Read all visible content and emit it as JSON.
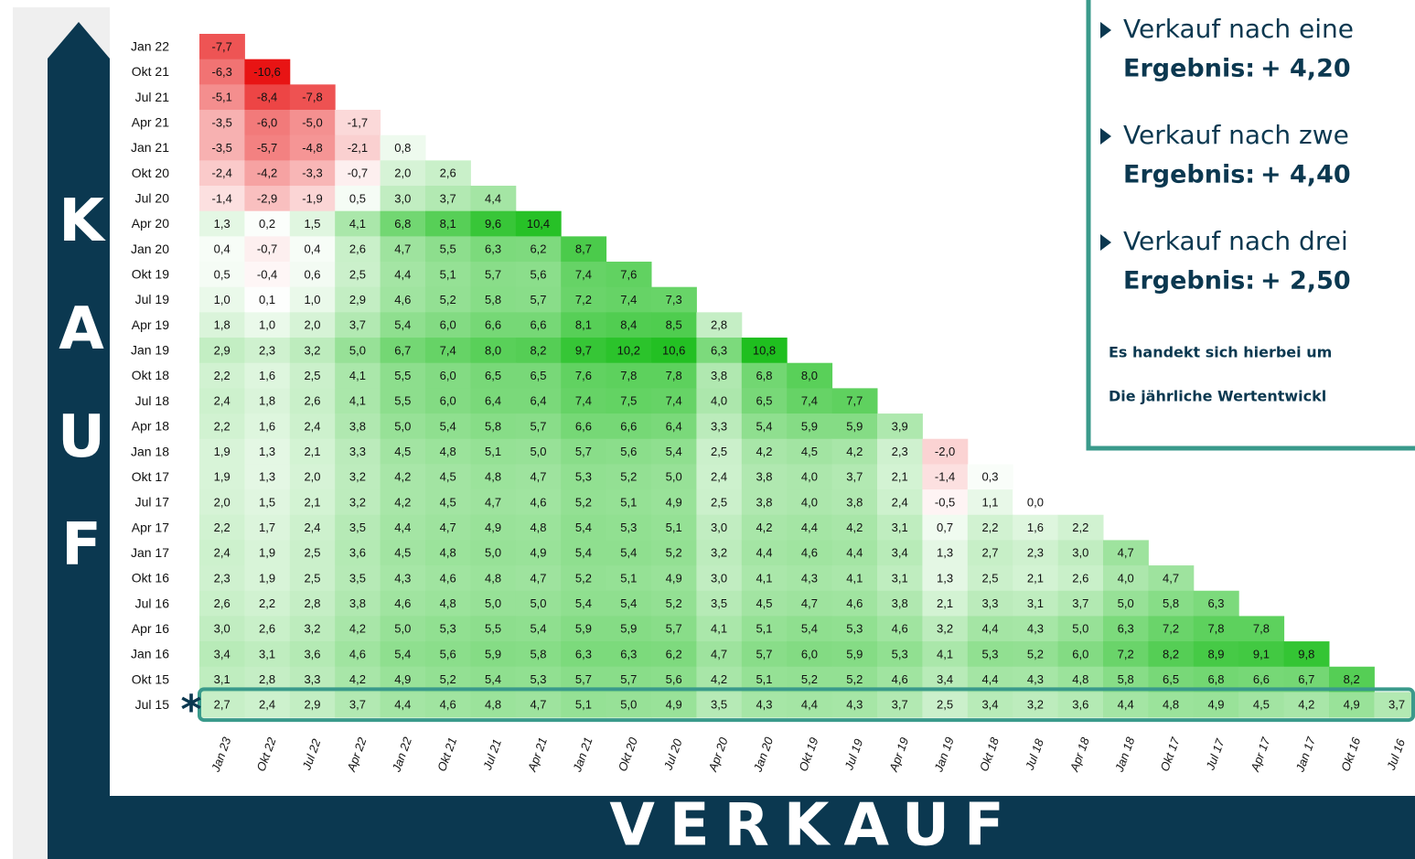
{
  "chart_data": {
    "type": "heatmap",
    "y_axis_label": "KAUF",
    "x_axis_label": "VERKAUF",
    "marker": "*",
    "color_scale": {
      "negative": "#e81414",
      "zero": "#ffffff",
      "positive": "#1fbf1f"
    },
    "columns": [
      "Jan 23",
      "Okt 22",
      "Jul 22",
      "Apr 22",
      "Jan 22",
      "Okt 21",
      "Jul 21",
      "Apr 21",
      "Jan 21",
      "Okt 20",
      "Jul 20",
      "Apr 20",
      "Jan 20",
      "Okt 19",
      "Jul 19",
      "Apr 19",
      "Jan 19",
      "Okt 18",
      "Jul 18",
      "Apr 18",
      "Jan 18",
      "Okt 17",
      "Jul 17",
      "Apr 17",
      "Jan 17",
      "Okt 16",
      "Jul 16"
    ],
    "rows": [
      {
        "name": "Jan 22",
        "values": [
          -7.7
        ],
        "value_labels": [
          "-7,7"
        ]
      },
      {
        "name": "Okt 21",
        "values": [
          -6.3,
          -10.6
        ],
        "value_labels": [
          "-6,3",
          "-10,6"
        ]
      },
      {
        "name": "Jul 21",
        "values": [
          -5.1,
          -8.4,
          -7.8
        ],
        "value_labels": [
          "-5,1",
          "-8,4",
          "-7,8"
        ]
      },
      {
        "name": "Apr 21",
        "values": [
          -3.5,
          -6.0,
          -5.0,
          -1.7
        ],
        "value_labels": [
          "-3,5",
          "-6,0",
          "-5,0",
          "-1,7"
        ]
      },
      {
        "name": "Jan 21",
        "values": [
          -3.5,
          -5.7,
          -4.8,
          -2.1,
          0.8
        ],
        "value_labels": [
          "-3,5",
          "-5,7",
          "-4,8",
          "-2,1",
          "0,8"
        ]
      },
      {
        "name": "Okt 20",
        "values": [
          -2.4,
          -4.2,
          -3.3,
          -0.7,
          2.0,
          2.6
        ],
        "value_labels": [
          "-2,4",
          "-4,2",
          "-3,3",
          "-0,7",
          "2,0",
          "2,6"
        ]
      },
      {
        "name": "Jul 20",
        "values": [
          -1.4,
          -2.9,
          -1.9,
          0.5,
          3.0,
          3.7,
          4.4
        ],
        "value_labels": [
          "-1,4",
          "-2,9",
          "-1,9",
          "0,5",
          "3,0",
          "3,7",
          "4,4"
        ]
      },
      {
        "name": "Apr 20",
        "values": [
          1.3,
          0.2,
          1.5,
          4.1,
          6.8,
          8.1,
          9.6,
          10.4
        ],
        "value_labels": [
          "1,3",
          "0,2",
          "1,5",
          "4,1",
          "6,8",
          "8,1",
          "9,6",
          "10,4"
        ]
      },
      {
        "name": "Jan 20",
        "values": [
          0.4,
          -0.7,
          0.4,
          2.6,
          4.7,
          5.5,
          6.3,
          6.2,
          8.7
        ],
        "value_labels": [
          "0,4",
          "-0,7",
          "0,4",
          "2,6",
          "4,7",
          "5,5",
          "6,3",
          "6,2",
          "8,7"
        ]
      },
      {
        "name": "Okt 19",
        "values": [
          0.5,
          -0.4,
          0.6,
          2.5,
          4.4,
          5.1,
          5.7,
          5.6,
          7.4,
          7.6
        ],
        "value_labels": [
          "0,5",
          "-0,4",
          "0,6",
          "2,5",
          "4,4",
          "5,1",
          "5,7",
          "5,6",
          "7,4",
          "7,6"
        ]
      },
      {
        "name": "Jul 19",
        "values": [
          1.0,
          0.1,
          1.0,
          2.9,
          4.6,
          5.2,
          5.8,
          5.7,
          7.2,
          7.4,
          7.3
        ],
        "value_labels": [
          "1,0",
          "0,1",
          "1,0",
          "2,9",
          "4,6",
          "5,2",
          "5,8",
          "5,7",
          "7,2",
          "7,4",
          "7,3"
        ]
      },
      {
        "name": "Apr 19",
        "values": [
          1.8,
          1.0,
          2.0,
          3.7,
          5.4,
          6.0,
          6.6,
          6.6,
          8.1,
          8.4,
          8.5,
          2.8
        ],
        "value_labels": [
          "1,8",
          "1,0",
          "2,0",
          "3,7",
          "5,4",
          "6,0",
          "6,6",
          "6,6",
          "8,1",
          "8,4",
          "8,5",
          "2,8"
        ]
      },
      {
        "name": "Jan 19",
        "values": [
          2.9,
          2.3,
          3.2,
          5.0,
          6.7,
          7.4,
          8.0,
          8.2,
          9.7,
          10.2,
          10.6,
          6.3,
          10.8
        ],
        "value_labels": [
          "2,9",
          "2,3",
          "3,2",
          "5,0",
          "6,7",
          "7,4",
          "8,0",
          "8,2",
          "9,7",
          "10,2",
          "10,6",
          "6,3",
          "10,8"
        ]
      },
      {
        "name": "Okt 18",
        "values": [
          2.2,
          1.6,
          2.5,
          4.1,
          5.5,
          6.0,
          6.5,
          6.5,
          7.6,
          7.8,
          7.8,
          3.8,
          6.8,
          8.0
        ],
        "value_labels": [
          "2,2",
          "1,6",
          "2,5",
          "4,1",
          "5,5",
          "6,0",
          "6,5",
          "6,5",
          "7,6",
          "7,8",
          "7,8",
          "3,8",
          "6,8",
          "8,0"
        ]
      },
      {
        "name": "Jul 18",
        "values": [
          2.4,
          1.8,
          2.6,
          4.1,
          5.5,
          6.0,
          6.4,
          6.4,
          7.4,
          7.5,
          7.4,
          4.0,
          6.5,
          7.4,
          7.7
        ],
        "value_labels": [
          "2,4",
          "1,8",
          "2,6",
          "4,1",
          "5,5",
          "6,0",
          "6,4",
          "6,4",
          "7,4",
          "7,5",
          "7,4",
          "4,0",
          "6,5",
          "7,4",
          "7,7"
        ]
      },
      {
        "name": "Apr 18",
        "values": [
          2.2,
          1.6,
          2.4,
          3.8,
          5.0,
          5.4,
          5.8,
          5.7,
          6.6,
          6.6,
          6.4,
          3.3,
          5.4,
          5.9,
          5.9,
          3.9
        ],
        "value_labels": [
          "2,2",
          "1,6",
          "2,4",
          "3,8",
          "5,0",
          "5,4",
          "5,8",
          "5,7",
          "6,6",
          "6,6",
          "6,4",
          "3,3",
          "5,4",
          "5,9",
          "5,9",
          "3,9"
        ]
      },
      {
        "name": "Jan 18",
        "values": [
          1.9,
          1.3,
          2.1,
          3.3,
          4.5,
          4.8,
          5.1,
          5.0,
          5.7,
          5.6,
          5.4,
          2.5,
          4.2,
          4.5,
          4.2,
          2.3,
          -2.0
        ],
        "value_labels": [
          "1,9",
          "1,3",
          "2,1",
          "3,3",
          "4,5",
          "4,8",
          "5,1",
          "5,0",
          "5,7",
          "5,6",
          "5,4",
          "2,5",
          "4,2",
          "4,5",
          "4,2",
          "2,3",
          "-2,0"
        ]
      },
      {
        "name": "Okt 17",
        "values": [
          1.9,
          1.3,
          2.0,
          3.2,
          4.2,
          4.5,
          4.8,
          4.7,
          5.3,
          5.2,
          5.0,
          2.4,
          3.8,
          4.0,
          3.7,
          2.1,
          -1.4,
          0.3
        ],
        "value_labels": [
          "1,9",
          "1,3",
          "2,0",
          "3,2",
          "4,2",
          "4,5",
          "4,8",
          "4,7",
          "5,3",
          "5,2",
          "5,0",
          "2,4",
          "3,8",
          "4,0",
          "3,7",
          "2,1",
          "-1,4",
          "0,3"
        ]
      },
      {
        "name": "Jul 17",
        "values": [
          2.0,
          1.5,
          2.1,
          3.2,
          4.2,
          4.5,
          4.7,
          4.6,
          5.2,
          5.1,
          4.9,
          2.5,
          3.8,
          4.0,
          3.8,
          2.4,
          -0.5,
          1.1,
          0.0
        ],
        "value_labels": [
          "2,0",
          "1,5",
          "2,1",
          "3,2",
          "4,2",
          "4,5",
          "4,7",
          "4,6",
          "5,2",
          "5,1",
          "4,9",
          "2,5",
          "3,8",
          "4,0",
          "3,8",
          "2,4",
          "-0,5",
          "1,1",
          "0,0"
        ]
      },
      {
        "name": "Apr 17",
        "values": [
          2.2,
          1.7,
          2.4,
          3.5,
          4.4,
          4.7,
          4.9,
          4.8,
          5.4,
          5.3,
          5.1,
          3.0,
          4.2,
          4.4,
          4.2,
          3.1,
          0.7,
          2.2,
          1.6,
          2.2
        ],
        "value_labels": [
          "2,2",
          "1,7",
          "2,4",
          "3,5",
          "4,4",
          "4,7",
          "4,9",
          "4,8",
          "5,4",
          "5,3",
          "5,1",
          "3,0",
          "4,2",
          "4,4",
          "4,2",
          "3,1",
          "0,7",
          "2,2",
          "1,6",
          "2,2"
        ]
      },
      {
        "name": "Jan 17",
        "values": [
          2.4,
          1.9,
          2.5,
          3.6,
          4.5,
          4.8,
          5.0,
          4.9,
          5.4,
          5.4,
          5.2,
          3.2,
          4.4,
          4.6,
          4.4,
          3.4,
          1.3,
          2.7,
          2.3,
          3.0,
          4.7
        ],
        "value_labels": [
          "2,4",
          "1,9",
          "2,5",
          "3,6",
          "4,5",
          "4,8",
          "5,0",
          "4,9",
          "5,4",
          "5,4",
          "5,2",
          "3,2",
          "4,4",
          "4,6",
          "4,4",
          "3,4",
          "1,3",
          "2,7",
          "2,3",
          "3,0",
          "4,7"
        ]
      },
      {
        "name": "Okt 16",
        "values": [
          2.3,
          1.9,
          2.5,
          3.5,
          4.3,
          4.6,
          4.8,
          4.7,
          5.2,
          5.1,
          4.9,
          3.0,
          4.1,
          4.3,
          4.1,
          3.1,
          1.3,
          2.5,
          2.1,
          2.6,
          4.0,
          4.7
        ],
        "value_labels": [
          "2,3",
          "1,9",
          "2,5",
          "3,5",
          "4,3",
          "4,6",
          "4,8",
          "4,7",
          "5,2",
          "5,1",
          "4,9",
          "3,0",
          "4,1",
          "4,3",
          "4,1",
          "3,1",
          "1,3",
          "2,5",
          "2,1",
          "2,6",
          "4,0",
          "4,7"
        ]
      },
      {
        "name": "Jul 16",
        "values": [
          2.6,
          2.2,
          2.8,
          3.8,
          4.6,
          4.8,
          5.0,
          5.0,
          5.4,
          5.4,
          5.2,
          3.5,
          4.5,
          4.7,
          4.6,
          3.8,
          2.1,
          3.3,
          3.1,
          3.7,
          5.0,
          5.8,
          6.3
        ],
        "value_labels": [
          "2,6",
          "2,2",
          "2,8",
          "3,8",
          "4,6",
          "4,8",
          "5,0",
          "5,0",
          "5,4",
          "5,4",
          "5,2",
          "3,5",
          "4,5",
          "4,7",
          "4,6",
          "3,8",
          "2,1",
          "3,3",
          "3,1",
          "3,7",
          "5,0",
          "5,8",
          "6,3"
        ]
      },
      {
        "name": "Apr 16",
        "values": [
          3.0,
          2.6,
          3.2,
          4.2,
          5.0,
          5.3,
          5.5,
          5.4,
          5.9,
          5.9,
          5.7,
          4.1,
          5.1,
          5.4,
          5.3,
          4.6,
          3.2,
          4.4,
          4.3,
          5.0,
          6.3,
          7.2,
          7.8,
          7.8
        ],
        "value_labels": [
          "3,0",
          "2,6",
          "3,2",
          "4,2",
          "5,0",
          "5,3",
          "5,5",
          "5,4",
          "5,9",
          "5,9",
          "5,7",
          "4,1",
          "5,1",
          "5,4",
          "5,3",
          "4,6",
          "3,2",
          "4,4",
          "4,3",
          "5,0",
          "6,3",
          "7,2",
          "7,8",
          "7,8"
        ]
      },
      {
        "name": "Jan 16",
        "values": [
          3.4,
          3.1,
          3.6,
          4.6,
          5.4,
          5.6,
          5.9,
          5.8,
          6.3,
          6.3,
          6.2,
          4.7,
          5.7,
          6.0,
          5.9,
          5.3,
          4.1,
          5.3,
          5.2,
          6.0,
          7.2,
          8.2,
          8.9,
          9.1,
          9.8
        ],
        "value_labels": [
          "3,4",
          "3,1",
          "3,6",
          "4,6",
          "5,4",
          "5,6",
          "5,9",
          "5,8",
          "6,3",
          "6,3",
          "6,2",
          "4,7",
          "5,7",
          "6,0",
          "5,9",
          "5,3",
          "4,1",
          "5,3",
          "5,2",
          "6,0",
          "7,2",
          "8,2",
          "8,9",
          "9,1",
          "9,8"
        ]
      },
      {
        "name": "Okt 15",
        "values": [
          3.1,
          2.8,
          3.3,
          4.2,
          4.9,
          5.2,
          5.4,
          5.3,
          5.7,
          5.7,
          5.6,
          4.2,
          5.1,
          5.2,
          5.2,
          4.6,
          3.4,
          4.4,
          4.3,
          4.8,
          5.8,
          6.5,
          6.8,
          6.6,
          6.7,
          8.2
        ],
        "value_labels": [
          "3,1",
          "2,8",
          "3,3",
          "4,2",
          "4,9",
          "5,2",
          "5,4",
          "5,3",
          "5,7",
          "5,7",
          "5,6",
          "4,2",
          "5,1",
          "5,2",
          "5,2",
          "4,6",
          "3,4",
          "4,4",
          "4,3",
          "4,8",
          "5,8",
          "6,5",
          "6,8",
          "6,6",
          "6,7",
          "8,2"
        ]
      },
      {
        "name": "Jul 15",
        "values": [
          2.7,
          2.4,
          2.9,
          3.7,
          4.4,
          4.6,
          4.8,
          4.7,
          5.1,
          5.0,
          4.9,
          3.5,
          4.3,
          4.4,
          4.3,
          3.7,
          2.5,
          3.4,
          3.2,
          3.6,
          4.4,
          4.8,
          4.9,
          4.5,
          4.2,
          4.9,
          3.7
        ],
        "value_labels": [
          "2,7",
          "2,4",
          "2,9",
          "3,7",
          "4,4",
          "4,6",
          "4,8",
          "4,7",
          "5,1",
          "5,0",
          "4,9",
          "3,5",
          "4,3",
          "4,4",
          "4,3",
          "3,7",
          "2,5",
          "3,4",
          "3,2",
          "3,6",
          "4,4",
          "4,8",
          "4,9",
          "4,5",
          "4,2",
          "4,9",
          "3,7"
        ]
      }
    ],
    "info_box": {
      "items": [
        {
          "text": "Verkauf nach eine",
          "result_label": "Ergebnis:",
          "result": "+ 4,20"
        },
        {
          "text": "Verkauf nach zwe",
          "result_label": "Ergebnis:",
          "result": "+ 4,40"
        },
        {
          "text": "Verkauf nach drei",
          "result_label": "Ergebnis:",
          "result": "+ 2,50"
        }
      ],
      "notes": [
        "Es handekt sich hierbei um",
        "Die jährliche Wertentwickl"
      ]
    }
  }
}
